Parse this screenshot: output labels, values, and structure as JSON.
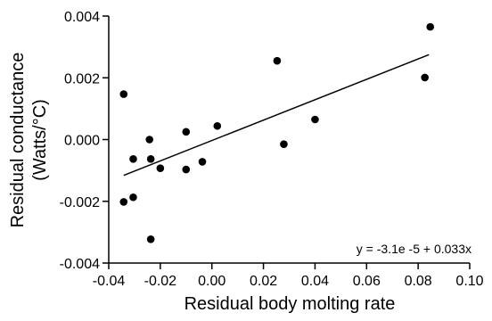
{
  "chart_data": {
    "type": "scatter",
    "xlabel": "Residual body molting rate",
    "ylabel_lines": [
      "Residual conductance",
      "(Watts/°C)"
    ],
    "xlim": [
      -0.04,
      0.1
    ],
    "ylim": [
      -0.004,
      0.004
    ],
    "xticks": [
      -0.04,
      -0.02,
      0.0,
      0.02,
      0.04,
      0.06,
      0.08,
      0.1
    ],
    "xtick_labels": [
      "-0.04",
      "-0.02",
      "0.00",
      "0.02",
      "0.04",
      "0.06",
      "0.08",
      "0.10"
    ],
    "yticks": [
      -0.004,
      -0.002,
      0.0,
      0.002,
      0.004
    ],
    "ytick_labels": [
      "-0.004",
      "-0.002",
      "0.000",
      "0.002",
      "0.004"
    ],
    "grid": false,
    "points": [
      {
        "x": -0.0342,
        "y": 0.00147
      },
      {
        "x": -0.0342,
        "y": -0.00202
      },
      {
        "x": -0.0305,
        "y": -0.00063
      },
      {
        "x": -0.0305,
        "y": -0.00187
      },
      {
        "x": -0.0242,
        "y": 0.0
      },
      {
        "x": -0.0237,
        "y": -0.00063
      },
      {
        "x": -0.0237,
        "y": -0.00323
      },
      {
        "x": -0.02,
        "y": -0.00093
      },
      {
        "x": -0.01,
        "y": 0.00025
      },
      {
        "x": -0.01,
        "y": -0.00097
      },
      {
        "x": -0.0037,
        "y": -0.00072
      },
      {
        "x": 0.0021,
        "y": 0.00044
      },
      {
        "x": 0.0253,
        "y": 0.00255
      },
      {
        "x": 0.0279,
        "y": -0.00015
      },
      {
        "x": 0.04,
        "y": 0.00065
      },
      {
        "x": 0.0826,
        "y": 0.00201
      },
      {
        "x": 0.0847,
        "y": 0.00365
      }
    ],
    "fit_line": {
      "intercept": -3.1e-05,
      "slope": 0.033,
      "x_range": [
        -0.0342,
        0.0842
      ]
    },
    "annotation": "y = -3.1e -5 + 0.033x"
  }
}
